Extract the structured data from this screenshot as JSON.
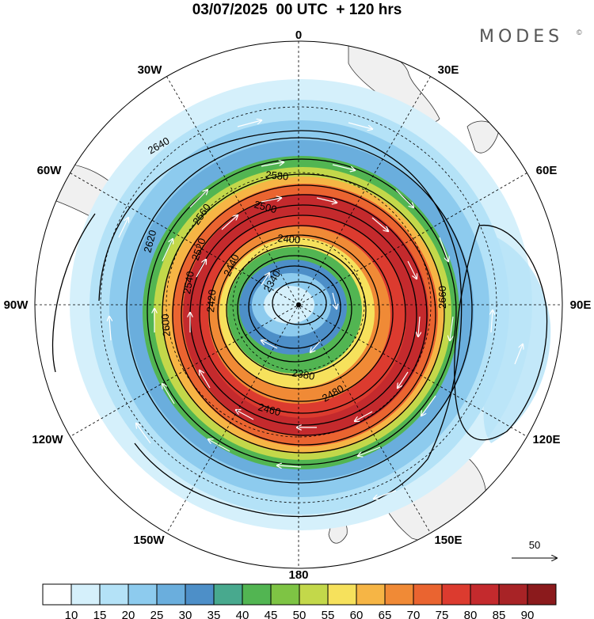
{
  "header": {
    "title": "03/07/2025  00 UTC  + 120 hrs",
    "brand": "MODES",
    "brand_mark": "©"
  },
  "map": {
    "projection": "south-polar-stereographic",
    "longitude_labels": [
      {
        "text": "0",
        "lon": 0
      },
      {
        "text": "30E",
        "lon": 30
      },
      {
        "text": "60E",
        "lon": 60
      },
      {
        "text": "90E",
        "lon": 90
      },
      {
        "text": "120E",
        "lon": 120
      },
      {
        "text": "150E",
        "lon": 150
      },
      {
        "text": "180",
        "lon": 180
      },
      {
        "text": "150W",
        "lon": -150
      },
      {
        "text": "120W",
        "lon": -120
      },
      {
        "text": "90W",
        "lon": -90
      },
      {
        "text": "60W",
        "lon": -60
      },
      {
        "text": "30W",
        "lon": -30
      }
    ],
    "contour_labels": [
      "2340",
      "2380",
      "2400",
      "2420",
      "2440",
      "2460",
      "2480",
      "2500",
      "2520",
      "2540",
      "2560",
      "2580",
      "2600",
      "2620",
      "2640",
      "2660"
    ],
    "wind_reference": {
      "label": "50"
    },
    "colorbar": {
      "colors": [
        "#ffffff",
        "#d5f0fb",
        "#b4e2f7",
        "#8dcbee",
        "#6aaedd",
        "#4d8fc8",
        "#48a98e",
        "#52b552",
        "#7ec444",
        "#c3d84a",
        "#f6e15c",
        "#f6b545",
        "#f08a36",
        "#ea6430",
        "#dc3b2f",
        "#c42a2d",
        "#a82326",
        "#8b1a1c"
      ],
      "tick_labels": [
        "10",
        "15",
        "20",
        "25",
        "30",
        "35",
        "40",
        "45",
        "50",
        "55",
        "60",
        "65",
        "70",
        "75",
        "80",
        "85",
        "90"
      ]
    }
  }
}
